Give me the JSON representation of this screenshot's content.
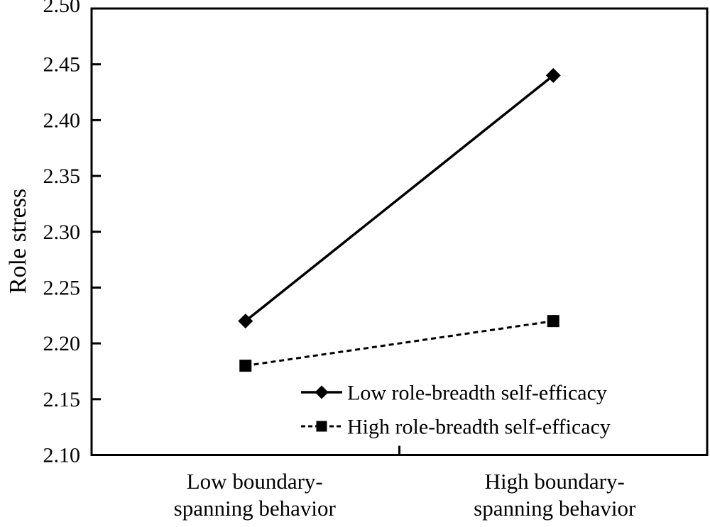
{
  "figure": {
    "background": "#ffffff",
    "foreground": "#000000"
  },
  "chart_data": {
    "type": "line",
    "title": "",
    "xlabel": "",
    "ylabel": "Role stress",
    "ylim": [
      2.1,
      2.5
    ],
    "ytick_step": 0.05,
    "ytick_labels": [
      "2.50",
      "2.45",
      "2.40",
      "2.35",
      "2.30",
      "2.25",
      "2.20",
      "2.15",
      "2.10"
    ],
    "categories": [
      "Low boundary-spanning behavior",
      "High boundary-spanning behavior"
    ],
    "category_label_lines": [
      [
        "Low boundary-",
        "spanning behavior"
      ],
      [
        "High boundary-",
        "spanning behavior"
      ]
    ],
    "series": [
      {
        "name": "Low role-breadth self-efficacy",
        "values": [
          2.22,
          2.44
        ],
        "marker": "diamond",
        "line_style": "solid"
      },
      {
        "name": "High role-breadth self-efficacy",
        "values": [
          2.18,
          2.22
        ],
        "marker": "square",
        "line_style": "dashed"
      }
    ],
    "legend": {
      "position": "inside-bottom-right",
      "entries": [
        "Low role-breadth self-efficacy",
        "High role-breadth self-efficacy"
      ]
    },
    "grid": false
  }
}
